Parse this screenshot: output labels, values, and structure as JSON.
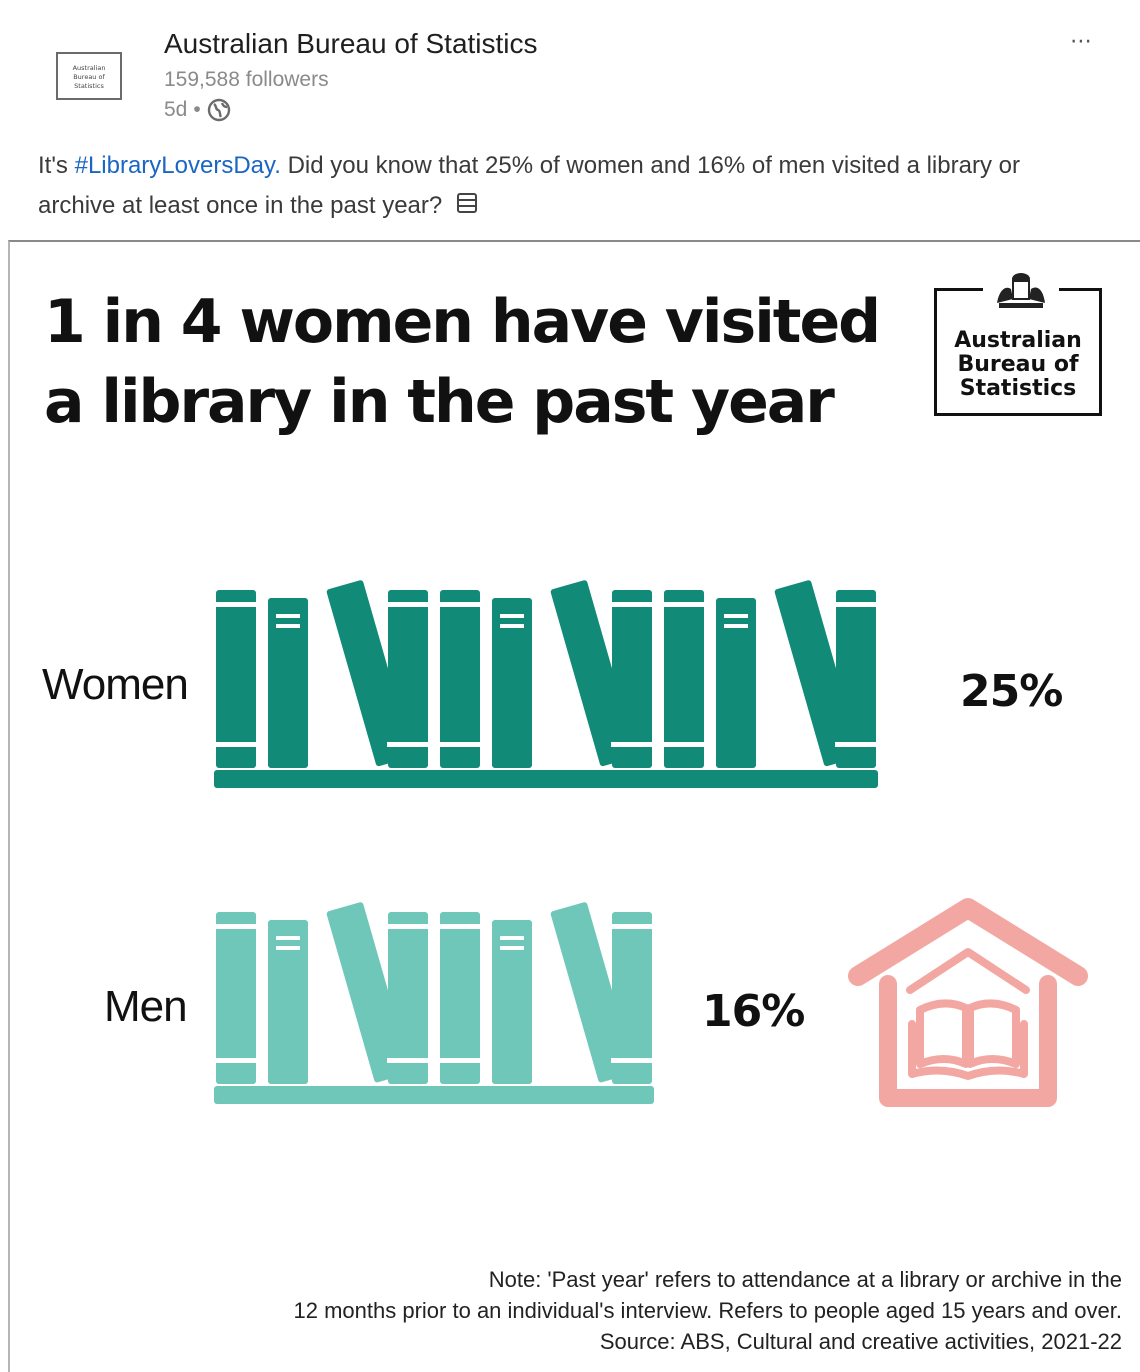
{
  "post": {
    "org_name": "Australian Bureau of Statistics",
    "followers": "159,588 followers",
    "age": "5d",
    "separator": "•",
    "more_icon": "⋯",
    "avatar_text": [
      "Australian",
      "Bureau of",
      "Statistics"
    ],
    "text_prefix": "It's ",
    "hashtag": "#LibraryLoversDay.",
    "text_suffix": " Did you know that 25% of women and 16% of men visited a library or archive at least once in the past year?",
    "globe_icon": "globe-icon",
    "books_emoji_icon": "books-emoji-icon"
  },
  "infographic": {
    "headline": "1 in 4 women have visited a library in the past year",
    "logo_text": [
      "Australian",
      "Bureau of",
      "Statistics"
    ],
    "rows": [
      {
        "label": "Women",
        "value": "25%",
        "color": "#128a78"
      },
      {
        "label": "Men",
        "value": "16%",
        "color": "#6fc7b9"
      }
    ],
    "house_color": "#f3a7a2",
    "note_lines": [
      "Note: 'Past year' refers to attendance at a library or archive in the",
      "12 months prior to an individual's interview. Refers to people aged 15 years and over.",
      "Source: ABS, Cultural and creative activities, 2021-22"
    ]
  }
}
